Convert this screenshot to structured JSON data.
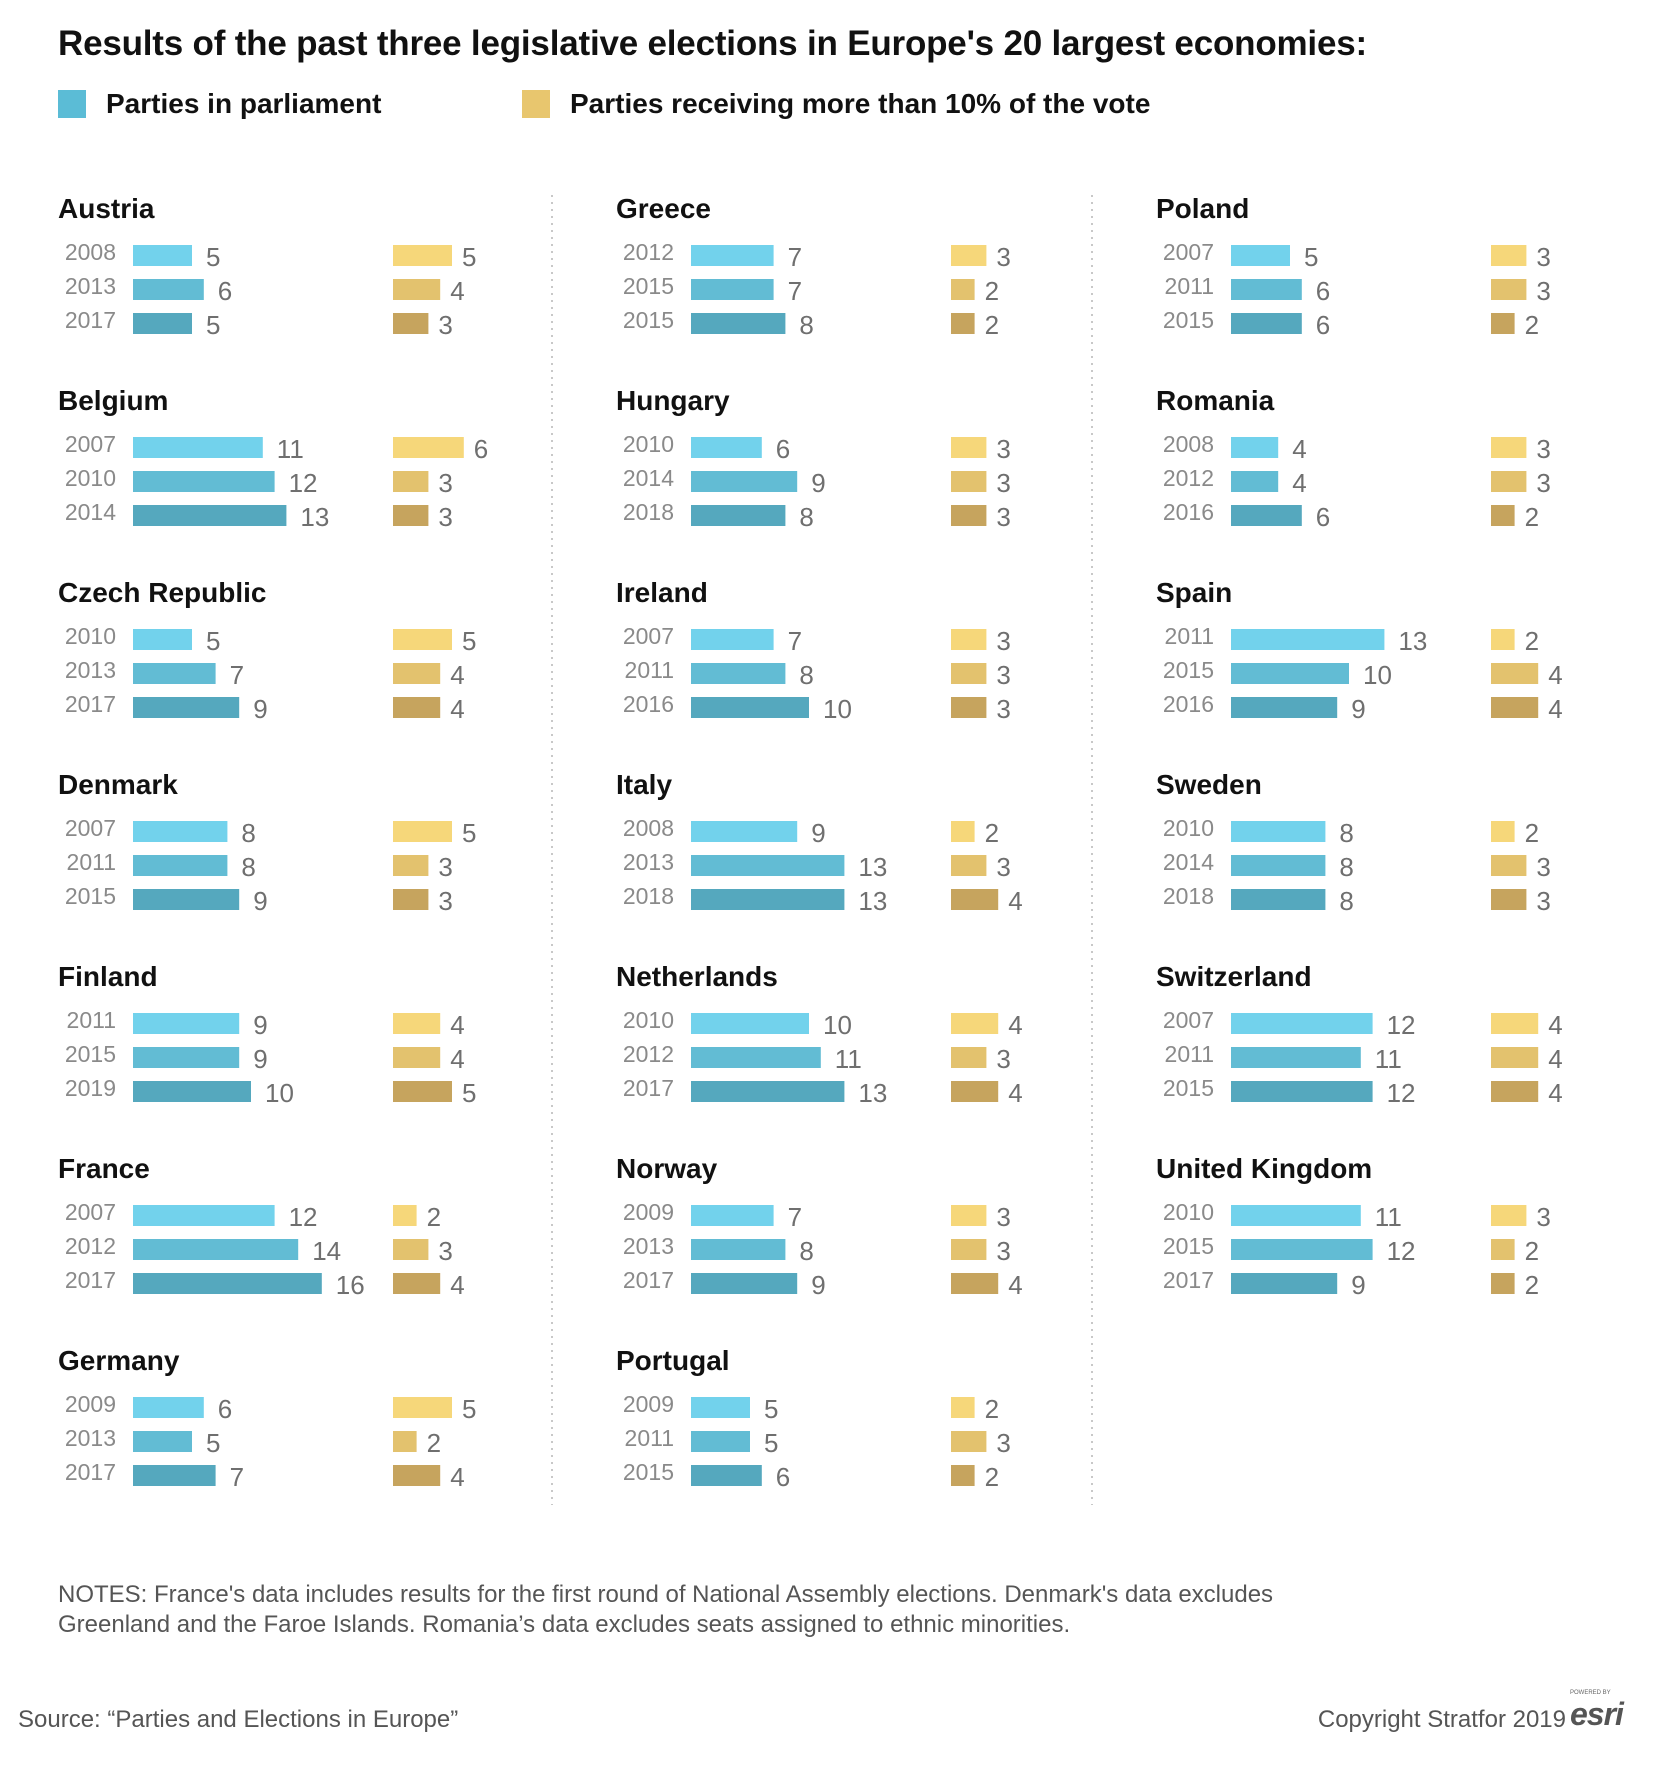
{
  "title": "Results of the past three legislative elections in Europe's 20 largest economies:",
  "legend": [
    {
      "label": "Parties in parliament",
      "color": "#5bbcd6"
    },
    {
      "label": "Parties receiving more than 10% of the vote",
      "color": "#e8c66e"
    }
  ],
  "colors": {
    "parliament": [
      "#72d2ec",
      "#62bcd4",
      "#55a8be"
    ],
    "over10": [
      "#f6d77a",
      "#e3c26e",
      "#c6a45e"
    ]
  },
  "chart_data": {
    "type": "bar",
    "series_names": [
      "Parties in parliament",
      "Parties receiving more than 10% of the vote"
    ],
    "countries": [
      {
        "name": "Austria",
        "elections": [
          {
            "year": "2008",
            "parliament": 5,
            "over10": 5
          },
          {
            "year": "2013",
            "parliament": 6,
            "over10": 4
          },
          {
            "year": "2017",
            "parliament": 5,
            "over10": 3
          }
        ]
      },
      {
        "name": "Belgium",
        "elections": [
          {
            "year": "2007",
            "parliament": 11,
            "over10": 6
          },
          {
            "year": "2010",
            "parliament": 12,
            "over10": 3
          },
          {
            "year": "2014",
            "parliament": 13,
            "over10": 3
          }
        ]
      },
      {
        "name": "Czech Republic",
        "elections": [
          {
            "year": "2010",
            "parliament": 5,
            "over10": 5
          },
          {
            "year": "2013",
            "parliament": 7,
            "over10": 4
          },
          {
            "year": "2017",
            "parliament": 9,
            "over10": 4
          }
        ]
      },
      {
        "name": "Denmark",
        "elections": [
          {
            "year": "2007",
            "parliament": 8,
            "over10": 5
          },
          {
            "year": "2011",
            "parliament": 8,
            "over10": 3
          },
          {
            "year": "2015",
            "parliament": 9,
            "over10": 3
          }
        ]
      },
      {
        "name": "Finland",
        "elections": [
          {
            "year": "2011",
            "parliament": 9,
            "over10": 4
          },
          {
            "year": "2015",
            "parliament": 9,
            "over10": 4
          },
          {
            "year": "2019",
            "parliament": 10,
            "over10": 5
          }
        ]
      },
      {
        "name": "France",
        "elections": [
          {
            "year": "2007",
            "parliament": 12,
            "over10": 2
          },
          {
            "year": "2012",
            "parliament": 14,
            "over10": 3
          },
          {
            "year": "2017",
            "parliament": 16,
            "over10": 4
          }
        ]
      },
      {
        "name": "Germany",
        "elections": [
          {
            "year": "2009",
            "parliament": 6,
            "over10": 5
          },
          {
            "year": "2013",
            "parliament": 5,
            "over10": 2
          },
          {
            "year": "2017",
            "parliament": 7,
            "over10": 4
          }
        ]
      },
      {
        "name": "Greece",
        "elections": [
          {
            "year": "2012",
            "parliament": 7,
            "over10": 3
          },
          {
            "year": "2015",
            "parliament": 7,
            "over10": 2
          },
          {
            "year": "2015",
            "parliament": 8,
            "over10": 2
          }
        ]
      },
      {
        "name": "Hungary",
        "elections": [
          {
            "year": "2010",
            "parliament": 6,
            "over10": 3
          },
          {
            "year": "2014",
            "parliament": 9,
            "over10": 3
          },
          {
            "year": "2018",
            "parliament": 8,
            "over10": 3
          }
        ]
      },
      {
        "name": "Ireland",
        "elections": [
          {
            "year": "2007",
            "parliament": 7,
            "over10": 3
          },
          {
            "year": "2011",
            "parliament": 8,
            "over10": 3
          },
          {
            "year": "2016",
            "parliament": 10,
            "over10": 3
          }
        ]
      },
      {
        "name": "Italy",
        "elections": [
          {
            "year": "2008",
            "parliament": 9,
            "over10": 2
          },
          {
            "year": "2013",
            "parliament": 13,
            "over10": 3
          },
          {
            "year": "2018",
            "parliament": 13,
            "over10": 4
          }
        ]
      },
      {
        "name": "Netherlands",
        "elections": [
          {
            "year": "2010",
            "parliament": 10,
            "over10": 4
          },
          {
            "year": "2012",
            "parliament": 11,
            "over10": 3
          },
          {
            "year": "2017",
            "parliament": 13,
            "over10": 4
          }
        ]
      },
      {
        "name": "Norway",
        "elections": [
          {
            "year": "2009",
            "parliament": 7,
            "over10": 3
          },
          {
            "year": "2013",
            "parliament": 8,
            "over10": 3
          },
          {
            "year": "2017",
            "parliament": 9,
            "over10": 4
          }
        ]
      },
      {
        "name": "Portugal",
        "elections": [
          {
            "year": "2009",
            "parliament": 5,
            "over10": 2
          },
          {
            "year": "2011",
            "parliament": 5,
            "over10": 3
          },
          {
            "year": "2015",
            "parliament": 6,
            "over10": 2
          }
        ]
      },
      {
        "name": "Poland",
        "elections": [
          {
            "year": "2007",
            "parliament": 5,
            "over10": 3
          },
          {
            "year": "2011",
            "parliament": 6,
            "over10": 3
          },
          {
            "year": "2015",
            "parliament": 6,
            "over10": 2
          }
        ]
      },
      {
        "name": "Romania",
        "elections": [
          {
            "year": "2008",
            "parliament": 4,
            "over10": 3
          },
          {
            "year": "2012",
            "parliament": 4,
            "over10": 3
          },
          {
            "year": "2016",
            "parliament": 6,
            "over10": 2
          }
        ]
      },
      {
        "name": "Spain",
        "elections": [
          {
            "year": "2011",
            "parliament": 13,
            "over10": 2
          },
          {
            "year": "2015",
            "parliament": 10,
            "over10": 4
          },
          {
            "year": "2016",
            "parliament": 9,
            "over10": 4
          }
        ]
      },
      {
        "name": "Sweden",
        "elections": [
          {
            "year": "2010",
            "parliament": 8,
            "over10": 2
          },
          {
            "year": "2014",
            "parliament": 8,
            "over10": 3
          },
          {
            "year": "2018",
            "parliament": 8,
            "over10": 3
          }
        ]
      },
      {
        "name": "Switzerland",
        "elections": [
          {
            "year": "2007",
            "parliament": 12,
            "over10": 4
          },
          {
            "year": "2011",
            "parliament": 11,
            "over10": 4
          },
          {
            "year": "2015",
            "parliament": 12,
            "over10": 4
          }
        ]
      },
      {
        "name": "United Kingdom",
        "elections": [
          {
            "year": "2010",
            "parliament": 11,
            "over10": 3
          },
          {
            "year": "2015",
            "parliament": 12,
            "over10": 2
          },
          {
            "year": "2017",
            "parliament": 9,
            "over10": 2
          }
        ]
      }
    ]
  },
  "notes": "NOTES: France's data includes results for the first round of National Assembly elections. Denmark's data excludes Greenland and the Faroe Islands. Romania’s data excludes seats assigned to ethnic minorities.",
  "source": "Source: “Parties and Elections in Europe”",
  "copyright": "Copyright Stratfor 2019",
  "esri": {
    "powered": "POWERED BY",
    "logo": "esri"
  }
}
